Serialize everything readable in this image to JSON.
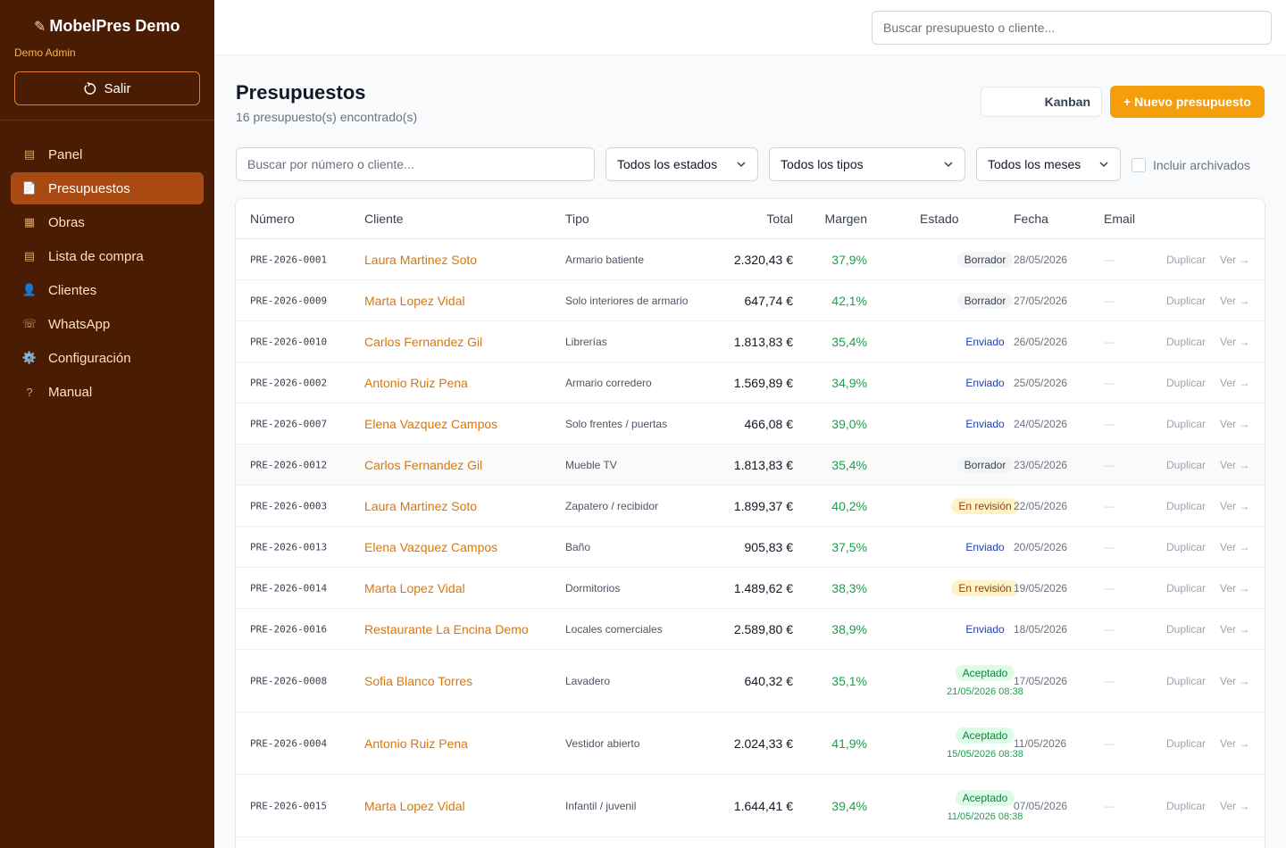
{
  "sidebar": {
    "brand": "MobelPres Demo",
    "user": "Demo Admin",
    "logout_label": "Salir",
    "items": [
      {
        "label": "Panel",
        "icon": "▤",
        "name": "panel"
      },
      {
        "label": "Presupuestos",
        "icon": "📄",
        "name": "presupuestos"
      },
      {
        "label": "Obras",
        "icon": "▦",
        "name": "obras"
      },
      {
        "label": "Lista de compra",
        "icon": "▤",
        "name": "lista-de-compra"
      },
      {
        "label": "Clientes",
        "icon": "👤",
        "name": "clientes"
      },
      {
        "label": "WhatsApp",
        "icon": "☏",
        "name": "whatsapp"
      },
      {
        "label": "Configuración",
        "icon": "⚙️",
        "name": "configuracion"
      },
      {
        "label": "Manual",
        "icon": "?",
        "name": "manual"
      }
    ],
    "active_index": 1
  },
  "topbar": {
    "search_placeholder": "Buscar presupuesto o cliente..."
  },
  "header": {
    "title": "Presupuestos",
    "subtitle": "16 presupuesto(s) encontrado(s)",
    "kanban_label": "Kanban",
    "new_label": "+ Nuevo presupuesto"
  },
  "filters": {
    "search_placeholder": "Buscar por número o cliente...",
    "estado": "Todos los estados",
    "tipo": "Todos los tipos",
    "mes": "Todos los meses",
    "archived_label": "Incluir archivados"
  },
  "table": {
    "headers": {
      "numero": "Número",
      "cliente": "Cliente",
      "tipo": "Tipo",
      "total": "Total",
      "margen": "Margen",
      "estado": "Estado",
      "fecha": "Fecha",
      "email": "Email"
    },
    "rows": [
      {
        "numero": "PRE-2026-0001",
        "cliente": "Laura Martinez Soto",
        "tipo": "Armario batiente",
        "total": "2.320,43 €",
        "margen": "37,9%",
        "estado": "Borrador",
        "estado_kind": "borrador",
        "fecha": "28/05/2026",
        "email": "—",
        "dup": "Duplicar",
        "ver": "Ver →"
      },
      {
        "numero": "PRE-2026-0009",
        "cliente": "Marta Lopez Vidal",
        "tipo": "Solo interiores de armario",
        "total": "647,74 €",
        "margen": "42,1%",
        "estado": "Borrador",
        "estado_kind": "borrador",
        "fecha": "27/05/2026",
        "email": "—",
        "dup": "Duplicar",
        "ver": "Ver →"
      },
      {
        "numero": "PRE-2026-0010",
        "cliente": "Carlos Fernandez Gil",
        "tipo": "Librerías",
        "total": "1.813,83 €",
        "margen": "35,4%",
        "estado": "Enviado",
        "estado_kind": "enviado",
        "fecha": "26/05/2026",
        "email": "—",
        "dup": "Duplicar",
        "ver": "Ver →"
      },
      {
        "numero": "PRE-2026-0002",
        "cliente": "Antonio Ruiz Pena",
        "tipo": "Armario corredero",
        "total": "1.569,89 €",
        "margen": "34,9%",
        "estado": "Enviado",
        "estado_kind": "enviado",
        "fecha": "25/05/2026",
        "email": "—",
        "dup": "Duplicar",
        "ver": "Ver →"
      },
      {
        "numero": "PRE-2026-0007",
        "cliente": "Elena Vazquez Campos",
        "tipo": "Solo frentes / puertas",
        "total": "466,08 €",
        "margen": "39,0%",
        "estado": "Enviado",
        "estado_kind": "enviado",
        "fecha": "24/05/2026",
        "email": "—",
        "dup": "Duplicar",
        "ver": "Ver →"
      },
      {
        "numero": "PRE-2026-0012",
        "cliente": "Carlos Fernandez Gil",
        "tipo": "Mueble TV",
        "total": "1.813,83 €",
        "margen": "35,4%",
        "estado": "Borrador",
        "estado_kind": "borrador",
        "fecha": "23/05/2026",
        "email": "—",
        "dup": "Duplicar",
        "ver": "Ver →",
        "highlight": true
      },
      {
        "numero": "PRE-2026-0003",
        "cliente": "Laura Martinez Soto",
        "tipo": "Zapatero / recibidor",
        "total": "1.899,37 €",
        "margen": "40,2%",
        "estado": "En revisión",
        "estado_kind": "revision",
        "fecha": "22/05/2026",
        "email": "—",
        "dup": "Duplicar",
        "ver": "Ver →"
      },
      {
        "numero": "PRE-2026-0013",
        "cliente": "Elena Vazquez Campos",
        "tipo": "Baño",
        "total": "905,83 €",
        "margen": "37,5%",
        "estado": "Enviado",
        "estado_kind": "enviado",
        "fecha": "20/05/2026",
        "email": "—",
        "dup": "Duplicar",
        "ver": "Ver →"
      },
      {
        "numero": "PRE-2026-0014",
        "cliente": "Marta Lopez Vidal",
        "tipo": "Dormitorios",
        "total": "1.489,62 €",
        "margen": "38,3%",
        "estado": "En revisión",
        "estado_kind": "revision",
        "fecha": "19/05/2026",
        "email": "—",
        "dup": "Duplicar",
        "ver": "Ver →"
      },
      {
        "numero": "PRE-2026-0016",
        "cliente": "Restaurante La Encina Demo",
        "tipo": "Locales comerciales",
        "total": "2.589,80 €",
        "margen": "38,9%",
        "estado": "Enviado",
        "estado_kind": "enviado",
        "fecha": "18/05/2026",
        "email": "—",
        "dup": "Duplicar",
        "ver": "Ver →"
      },
      {
        "numero": "PRE-2026-0008",
        "cliente": "Sofia Blanco Torres",
        "tipo": "Lavadero",
        "total": "640,32 €",
        "margen": "35,1%",
        "estado": "Aceptado",
        "estado_kind": "aceptado",
        "accepted_at": "21/05/2026 08:38",
        "fecha": "17/05/2026",
        "email": "—",
        "dup": "Duplicar",
        "ver": "Ver →"
      },
      {
        "numero": "PRE-2026-0004",
        "cliente": "Antonio Ruiz Pena",
        "tipo": "Vestidor abierto",
        "total": "2.024,33 €",
        "margen": "41,9%",
        "estado": "Aceptado",
        "estado_kind": "aceptado",
        "accepted_at": "15/05/2026 08:38",
        "fecha": "11/05/2026",
        "email": "—",
        "dup": "Duplicar",
        "ver": "Ver →"
      },
      {
        "numero": "PRE-2026-0015",
        "cliente": "Marta Lopez Vidal",
        "tipo": "Infantil / juvenil",
        "total": "1.644,41 €",
        "margen": "39,4%",
        "estado": "Aceptado",
        "estado_kind": "aceptado",
        "accepted_at": "11/05/2026 08:38",
        "fecha": "07/05/2026",
        "email": "—",
        "dup": "Duplicar",
        "ver": "Ver →"
      }
    ]
  }
}
